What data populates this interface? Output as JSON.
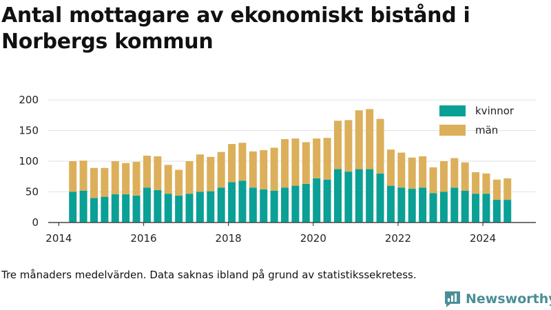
{
  "title": "Antal mottagare av ekonomiskt bistånd i Norbergs kommun",
  "footnote": "Tre månaders medelvärden. Data saknas ibland på grund av statistikssekretess.",
  "brand": {
    "name": "Newsworthy",
    "icon": "newsworthy-logo-icon"
  },
  "colors": {
    "kvinnor": "#0aa096",
    "man": "#dcaf5a",
    "axis": "#444444",
    "grid": "#e2e2e2"
  },
  "chart_data": {
    "type": "bar",
    "stacked": true,
    "x_ticks": [
      "2014",
      "2016",
      "2018",
      "2020",
      "2022",
      "2024"
    ],
    "y_ticks": [
      "0",
      "50",
      "100",
      "150",
      "200"
    ],
    "ylim": [
      0,
      200
    ],
    "xlim": [
      2013.75,
      2025.25
    ],
    "grid": true,
    "legend_position": "top-right",
    "x": [
      2014.33,
      2014.58,
      2014.83,
      2015.08,
      2015.33,
      2015.58,
      2015.83,
      2016.08,
      2016.33,
      2016.58,
      2016.83,
      2017.08,
      2017.33,
      2017.58,
      2017.83,
      2018.08,
      2018.33,
      2018.58,
      2018.83,
      2019.08,
      2019.33,
      2019.58,
      2019.83,
      2020.08,
      2020.33,
      2020.58,
      2020.83,
      2021.08,
      2021.33,
      2021.58,
      2021.83,
      2022.08,
      2022.33,
      2022.58,
      2022.83,
      2023.08,
      2023.33,
      2023.58,
      2023.83,
      2024.08,
      2024.33,
      2024.58
    ],
    "series": [
      {
        "name": "kvinnor",
        "values": [
          50,
          52,
          40,
          42,
          46,
          46,
          44,
          57,
          53,
          47,
          44,
          47,
          50,
          51,
          57,
          66,
          68,
          57,
          54,
          52,
          57,
          60,
          63,
          72,
          70,
          87,
          83,
          87,
          87,
          80,
          60,
          57,
          55,
          57,
          48,
          50,
          57,
          52,
          47,
          47,
          37,
          37
        ]
      },
      {
        "name": "män",
        "values": [
          50,
          49,
          49,
          47,
          54,
          51,
          55,
          52,
          55,
          47,
          42,
          53,
          61,
          56,
          58,
          62,
          62,
          59,
          64,
          70,
          79,
          77,
          68,
          65,
          68,
          79,
          84,
          96,
          98,
          89,
          59,
          57,
          51,
          51,
          42,
          50,
          48,
          46,
          35,
          33,
          33,
          35
        ]
      }
    ]
  }
}
